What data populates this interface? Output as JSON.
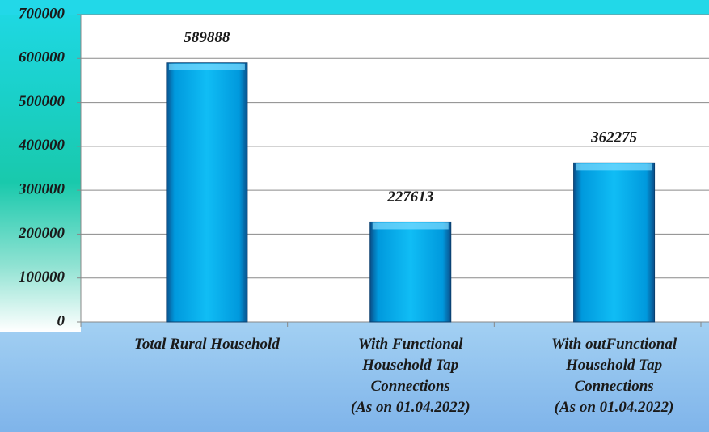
{
  "chart_data": {
    "type": "bar",
    "categories": [
      "Total Rural Household",
      "With Functional\nHousehold Tap\nConnections\n(As on 01.04.2022)",
      "With outFunctional\nHousehold Tap\nConnections\n(As on 01.04.2022)"
    ],
    "values": [
      589888,
      227613,
      362275
    ],
    "color": "#00b0f0",
    "ylim": [
      0,
      700000
    ],
    "yticks": [
      0,
      100000,
      200000,
      300000,
      400000,
      500000,
      600000,
      700000
    ],
    "grid": true
  }
}
